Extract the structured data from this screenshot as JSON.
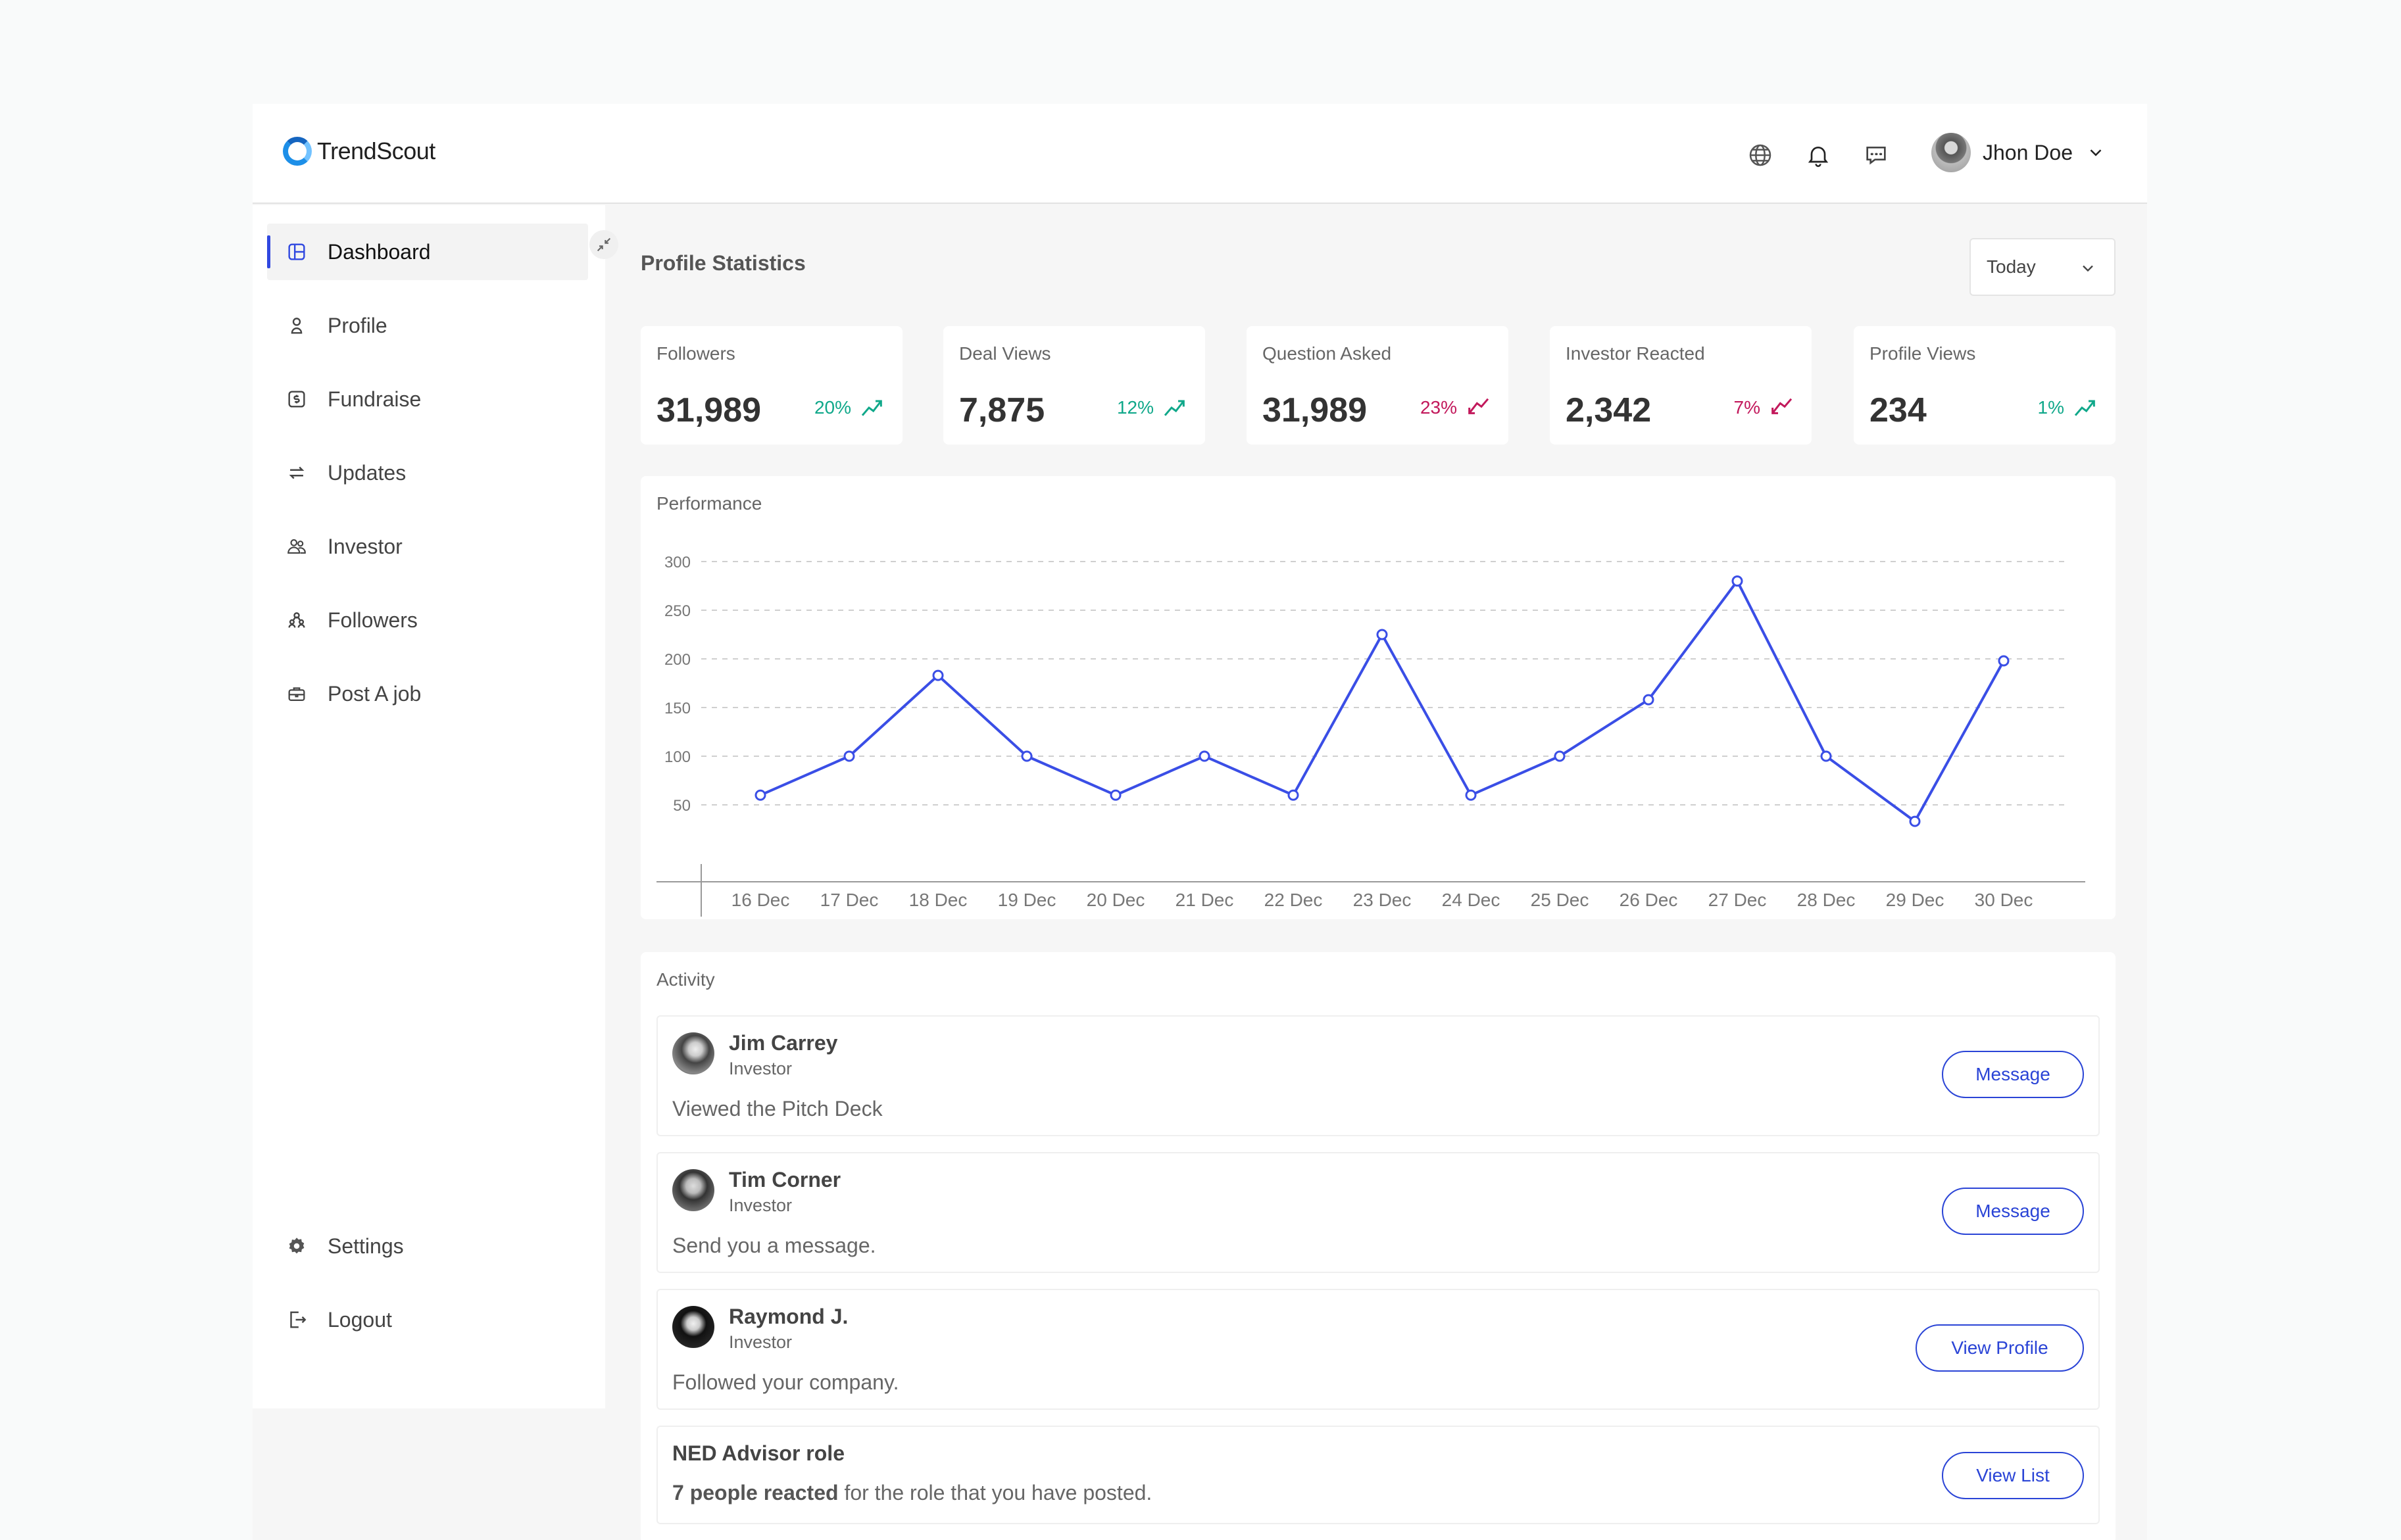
{
  "app": {
    "name": "TrendScout"
  },
  "header": {
    "user_name": "Jhon Doe"
  },
  "sidebar": {
    "items": [
      {
        "label": "Dashboard",
        "icon": "dashboard-icon",
        "active": true
      },
      {
        "label": "Profile",
        "icon": "profile-icon"
      },
      {
        "label": "Fundraise",
        "icon": "fundraise-icon"
      },
      {
        "label": "Updates",
        "icon": "updates-icon"
      },
      {
        "label": "Investor",
        "icon": "investor-icon"
      },
      {
        "label": "Followers",
        "icon": "followers-icon"
      },
      {
        "label": "Post A job",
        "icon": "briefcase-icon"
      }
    ],
    "bottom": [
      {
        "label": "Settings",
        "icon": "gear-icon"
      },
      {
        "label": "Logout",
        "icon": "logout-icon"
      }
    ]
  },
  "main": {
    "title": "Profile Statistics",
    "range": "Today",
    "stats": [
      {
        "label": "Followers",
        "value": "31,989",
        "change": "20%",
        "trend": "up"
      },
      {
        "label": "Deal Views",
        "value": "7,875",
        "change": "12%",
        "trend": "up"
      },
      {
        "label": "Question Asked",
        "value": "31,989",
        "change": "23%",
        "trend": "down"
      },
      {
        "label": "Investor Reacted",
        "value": "2,342",
        "change": "7%",
        "trend": "down"
      },
      {
        "label": "Profile Views",
        "value": "234",
        "change": "1%",
        "trend": "up"
      }
    ],
    "performance_label": "Performance",
    "activity_label": "Activity",
    "activity": [
      {
        "name": "Jim Carrey",
        "role": "Investor",
        "desc": "Viewed the Pitch Deck",
        "button": "Message"
      },
      {
        "name": "Tim Corner",
        "role": "Investor",
        "desc": "Send you a message.",
        "button": "Message"
      },
      {
        "name": "Raymond J.",
        "role": "Investor",
        "desc": "Followed your company.",
        "button": "View Profile"
      }
    ],
    "ned": {
      "title": "NED Advisor role",
      "count_text": "7 people reacted",
      "rest_text": " for the role that you have posted.",
      "button": "View List"
    }
  },
  "colors": {
    "accent": "#2a44d6",
    "up": "#10a88a",
    "down": "#c2185b",
    "line": "#3a4ee6"
  },
  "chart_data": {
    "type": "line",
    "title": "Performance",
    "categories": [
      "16 Dec",
      "17 Dec",
      "18 Dec",
      "19 Dec",
      "20 Dec",
      "21 Dec",
      "22 Dec",
      "23 Dec",
      "24 Dec",
      "25 Dec",
      "26 Dec",
      "27 Dec",
      "28 Dec",
      "29 Dec",
      "30 Dec"
    ],
    "series": [
      {
        "values": [
          60,
          100,
          183,
          100,
          60,
          100,
          60,
          225,
          60,
          100,
          158,
          280,
          100,
          33,
          198
        ]
      }
    ],
    "yticks": [
      50,
      100,
      150,
      200,
      250,
      300
    ],
    "ylim": [
      0,
      300
    ],
    "grid": true
  }
}
